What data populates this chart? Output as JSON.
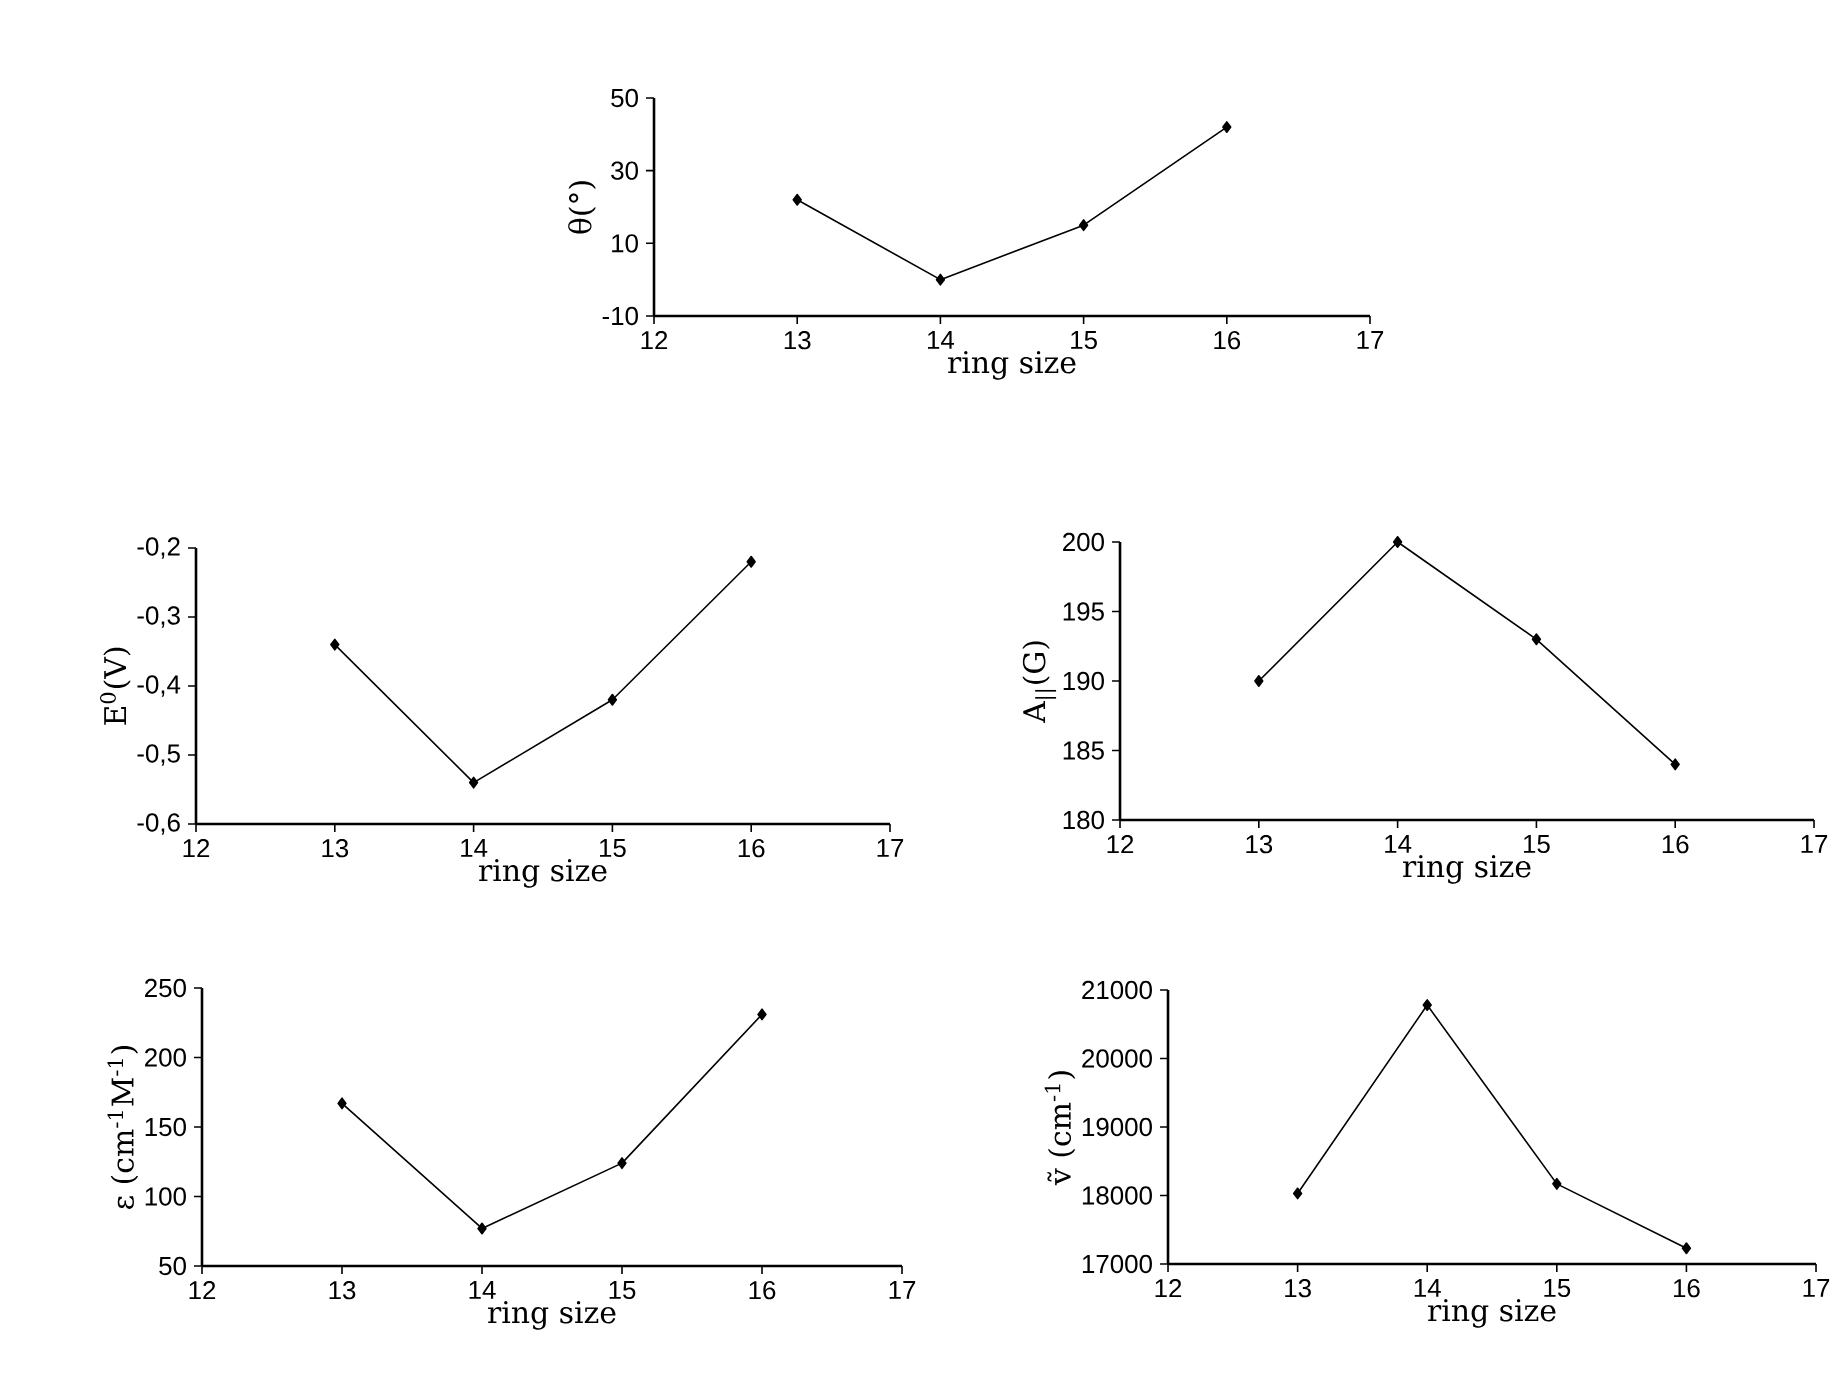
{
  "chart_data": [
    {
      "type": "line",
      "xlabel": "ring size",
      "ylabel": "θ(°)",
      "x": [
        13,
        14,
        15,
        16
      ],
      "values": [
        22,
        0,
        15,
        42
      ],
      "color": "#000000",
      "marker": "diamond",
      "xlim": [
        12,
        17
      ],
      "xticks": [
        12,
        13,
        14,
        15,
        16,
        17
      ],
      "ylim": [
        -10,
        50
      ],
      "yticks": [
        -10,
        10,
        30,
        50
      ]
    },
    {
      "type": "line",
      "xlabel": "ring size",
      "ylabel": "E$^{0}$(V)",
      "x": [
        13,
        14,
        15,
        16
      ],
      "values": [
        -0.34,
        -0.54,
        -0.42,
        -0.22
      ],
      "color": "#000000",
      "marker": "diamond",
      "xlim": [
        12,
        17
      ],
      "xticks": [
        12,
        13,
        14,
        15,
        16,
        17
      ],
      "ylim": [
        -0.6,
        -0.2
      ],
      "yticks": [
        {
          "value": -0.6,
          "label": "-0,6"
        },
        {
          "value": -0.5,
          "label": "-0,5"
        },
        {
          "value": -0.4,
          "label": "-0,4"
        },
        {
          "value": -0.3,
          "label": "-0,3"
        },
        {
          "value": -0.2,
          "label": "-0,2"
        }
      ]
    },
    {
      "type": "line",
      "xlabel": "ring size",
      "ylabel": "A$_{||}$(G)",
      "x": [
        13,
        14,
        15,
        16
      ],
      "values": [
        190,
        200,
        193,
        184
      ],
      "color": "#000000",
      "marker": "diamond",
      "xlim": [
        12,
        17
      ],
      "xticks": [
        12,
        13,
        14,
        15,
        16,
        17
      ],
      "ylim": [
        180,
        200
      ],
      "yticks": [
        180,
        185,
        190,
        195,
        200
      ]
    },
    {
      "type": "line",
      "xlabel": "ring size",
      "ylabel": "ε (cm$^{-1}$M$^{-1}$)",
      "x": [
        13,
        14,
        15,
        16
      ],
      "values": [
        167,
        77,
        124,
        231
      ],
      "color": "#000000",
      "marker": "diamond",
      "xlim": [
        12,
        17
      ],
      "xticks": [
        12,
        13,
        14,
        15,
        16,
        17
      ],
      "ylim": [
        50,
        250
      ],
      "yticks": [
        50,
        100,
        150,
        200,
        250
      ]
    },
    {
      "type": "line",
      "xlabel": "ring size",
      "ylabel": "ṽ (cm$^{-1}$)",
      "x": [
        13,
        14,
        15,
        16
      ],
      "values": [
        18030,
        20780,
        18170,
        17230
      ],
      "color": "#000000",
      "marker": "diamond",
      "xlim": [
        12,
        17
      ],
      "xticks": [
        12,
        13,
        14,
        15,
        16,
        17
      ],
      "ylim": [
        17000,
        21000
      ],
      "yticks": [
        17000,
        18000,
        19000,
        20000,
        21000
      ]
    }
  ]
}
